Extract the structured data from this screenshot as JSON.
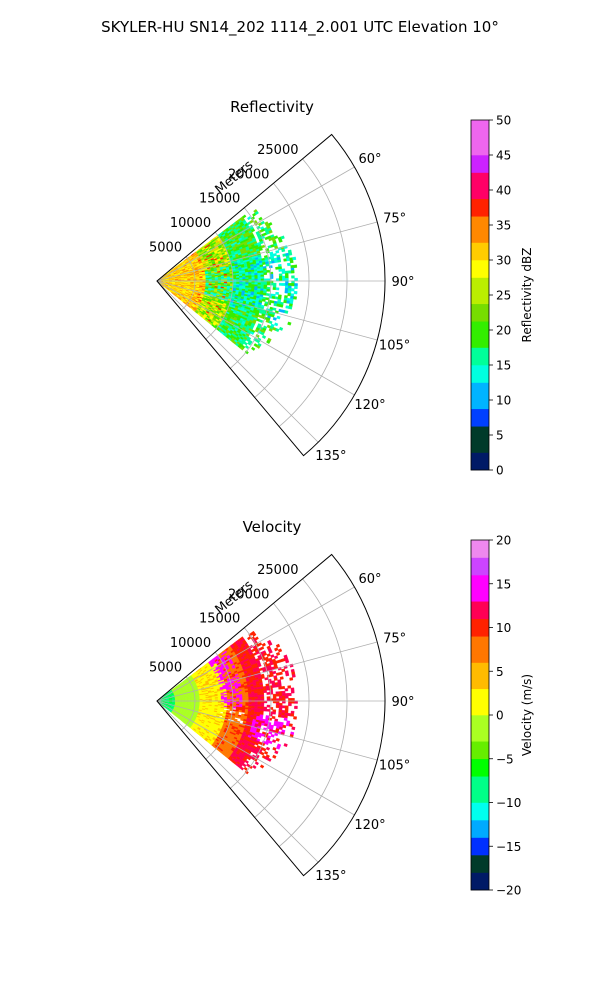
{
  "figure": {
    "title": "SKYLER-HU  SN14_202  1114_2.001 UTC Elevation 10°"
  },
  "chart_data": [
    {
      "type": "heatmap",
      "projection": "polar-sector",
      "title": "Reflectivity",
      "radial_axis_label": "Meters",
      "radial_ticks": [
        "5000",
        "10000",
        "15000",
        "20000",
        "25000"
      ],
      "radial_max": 30000,
      "angle_ticks": [
        "60°",
        "75°",
        "90°",
        "105°",
        "120°",
        "135°"
      ],
      "angle_range_deg": [
        50,
        140
      ],
      "grid": true,
      "colorbar": {
        "label": "Reflectivity dBZ",
        "range": [
          0,
          50
        ],
        "ticks": [
          "0",
          "5",
          "10",
          "15",
          "20",
          "25",
          "30",
          "35",
          "40",
          "45",
          "50"
        ]
      },
      "data_extent_m": 18500,
      "field": "reflectivity",
      "colors": {
        "low": "#00e5b0",
        "mid": "#55dd00",
        "high": "#ffcc00",
        "core": "#ff2a2a"
      }
    },
    {
      "type": "heatmap",
      "projection": "polar-sector",
      "title": "Velocity",
      "radial_axis_label": "Meters",
      "radial_ticks": [
        "5000",
        "10000",
        "15000",
        "20000",
        "25000"
      ],
      "radial_max": 30000,
      "angle_ticks": [
        "60°",
        "75°",
        "90°",
        "105°",
        "120°",
        "135°"
      ],
      "angle_range_deg": [
        50,
        140
      ],
      "grid": true,
      "colorbar": {
        "label": "Velocity (m/s)",
        "range": [
          -20,
          20
        ],
        "ticks": [
          "−20",
          "−15",
          "−10",
          "−5",
          "0",
          "5",
          "10",
          "15",
          "20"
        ]
      },
      "data_extent_m": 18500,
      "field": "velocity",
      "colors": {
        "near": "#33ee66",
        "inner": "#aaee22",
        "zero": "#ffee00",
        "outer": "#ff4400",
        "max": "#ff22dd"
      }
    }
  ]
}
